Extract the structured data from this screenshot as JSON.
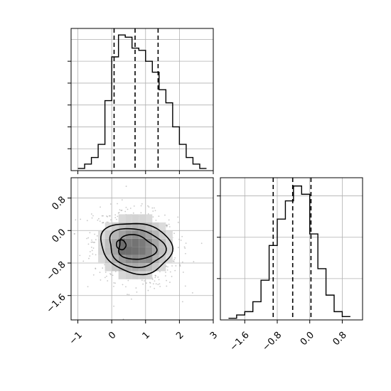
{
  "chart_data": [
    {
      "type": "histogram",
      "panel": "marginal-x",
      "xlim": [
        -1.2,
        3.0
      ],
      "bins_x": [
        -1.0,
        -0.8,
        -0.6,
        -0.4,
        -0.2,
        0.0,
        0.2,
        0.4,
        0.6,
        0.8,
        1.0,
        1.2,
        1.4,
        1.6,
        1.8,
        2.0,
        2.2,
        2.4,
        2.6,
        2.8
      ],
      "counts": [
        1,
        3,
        6,
        12,
        32,
        52,
        62,
        61,
        56,
        55,
        50,
        45,
        37,
        31,
        20,
        12,
        6,
        3,
        1
      ],
      "ymax": 65,
      "quantiles": [
        0.07,
        0.69,
        1.37
      ],
      "grid": true
    },
    {
      "type": "heatmap",
      "panel": "joint",
      "xlim": [
        -1.2,
        3.0
      ],
      "ylim": [
        -2.2,
        1.3
      ],
      "x_ticks": [
        "−1",
        "0",
        "1",
        "2",
        "3"
      ],
      "x_tick_values": [
        -1,
        0,
        1,
        2,
        3
      ],
      "y_ticks": [
        "0.8",
        "0.0",
        "−0.8",
        "−1.6"
      ],
      "y_tick_values": [
        0.8,
        0.0,
        -0.8,
        -1.6
      ],
      "grid": true,
      "contour_levels": 4
    },
    {
      "type": "histogram",
      "panel": "marginal-y",
      "xlim": [
        -2.2,
        1.3
      ],
      "bins_x": [
        -2.0,
        -1.8,
        -1.6,
        -1.4,
        -1.2,
        -1.0,
        -0.8,
        -0.6,
        -0.4,
        -0.2,
        0.0,
        0.2,
        0.4,
        0.6,
        0.8,
        1.0
      ],
      "counts": [
        1,
        3,
        5,
        11,
        24,
        45,
        61,
        72,
        81,
        76,
        52,
        31,
        15,
        5,
        2
      ],
      "ymax": 86,
      "quantiles": [
        -0.9,
        -0.42,
        0.03
      ],
      "x_ticks": [
        "−1.6",
        "−0.8",
        "0.0",
        "0.8"
      ],
      "x_tick_values": [
        -1.6,
        -0.8,
        0.0,
        0.8
      ],
      "grid": true
    }
  ],
  "colors": {
    "line": "#000000",
    "grid": "#b0b0b0",
    "points": "#9a9a9a"
  }
}
